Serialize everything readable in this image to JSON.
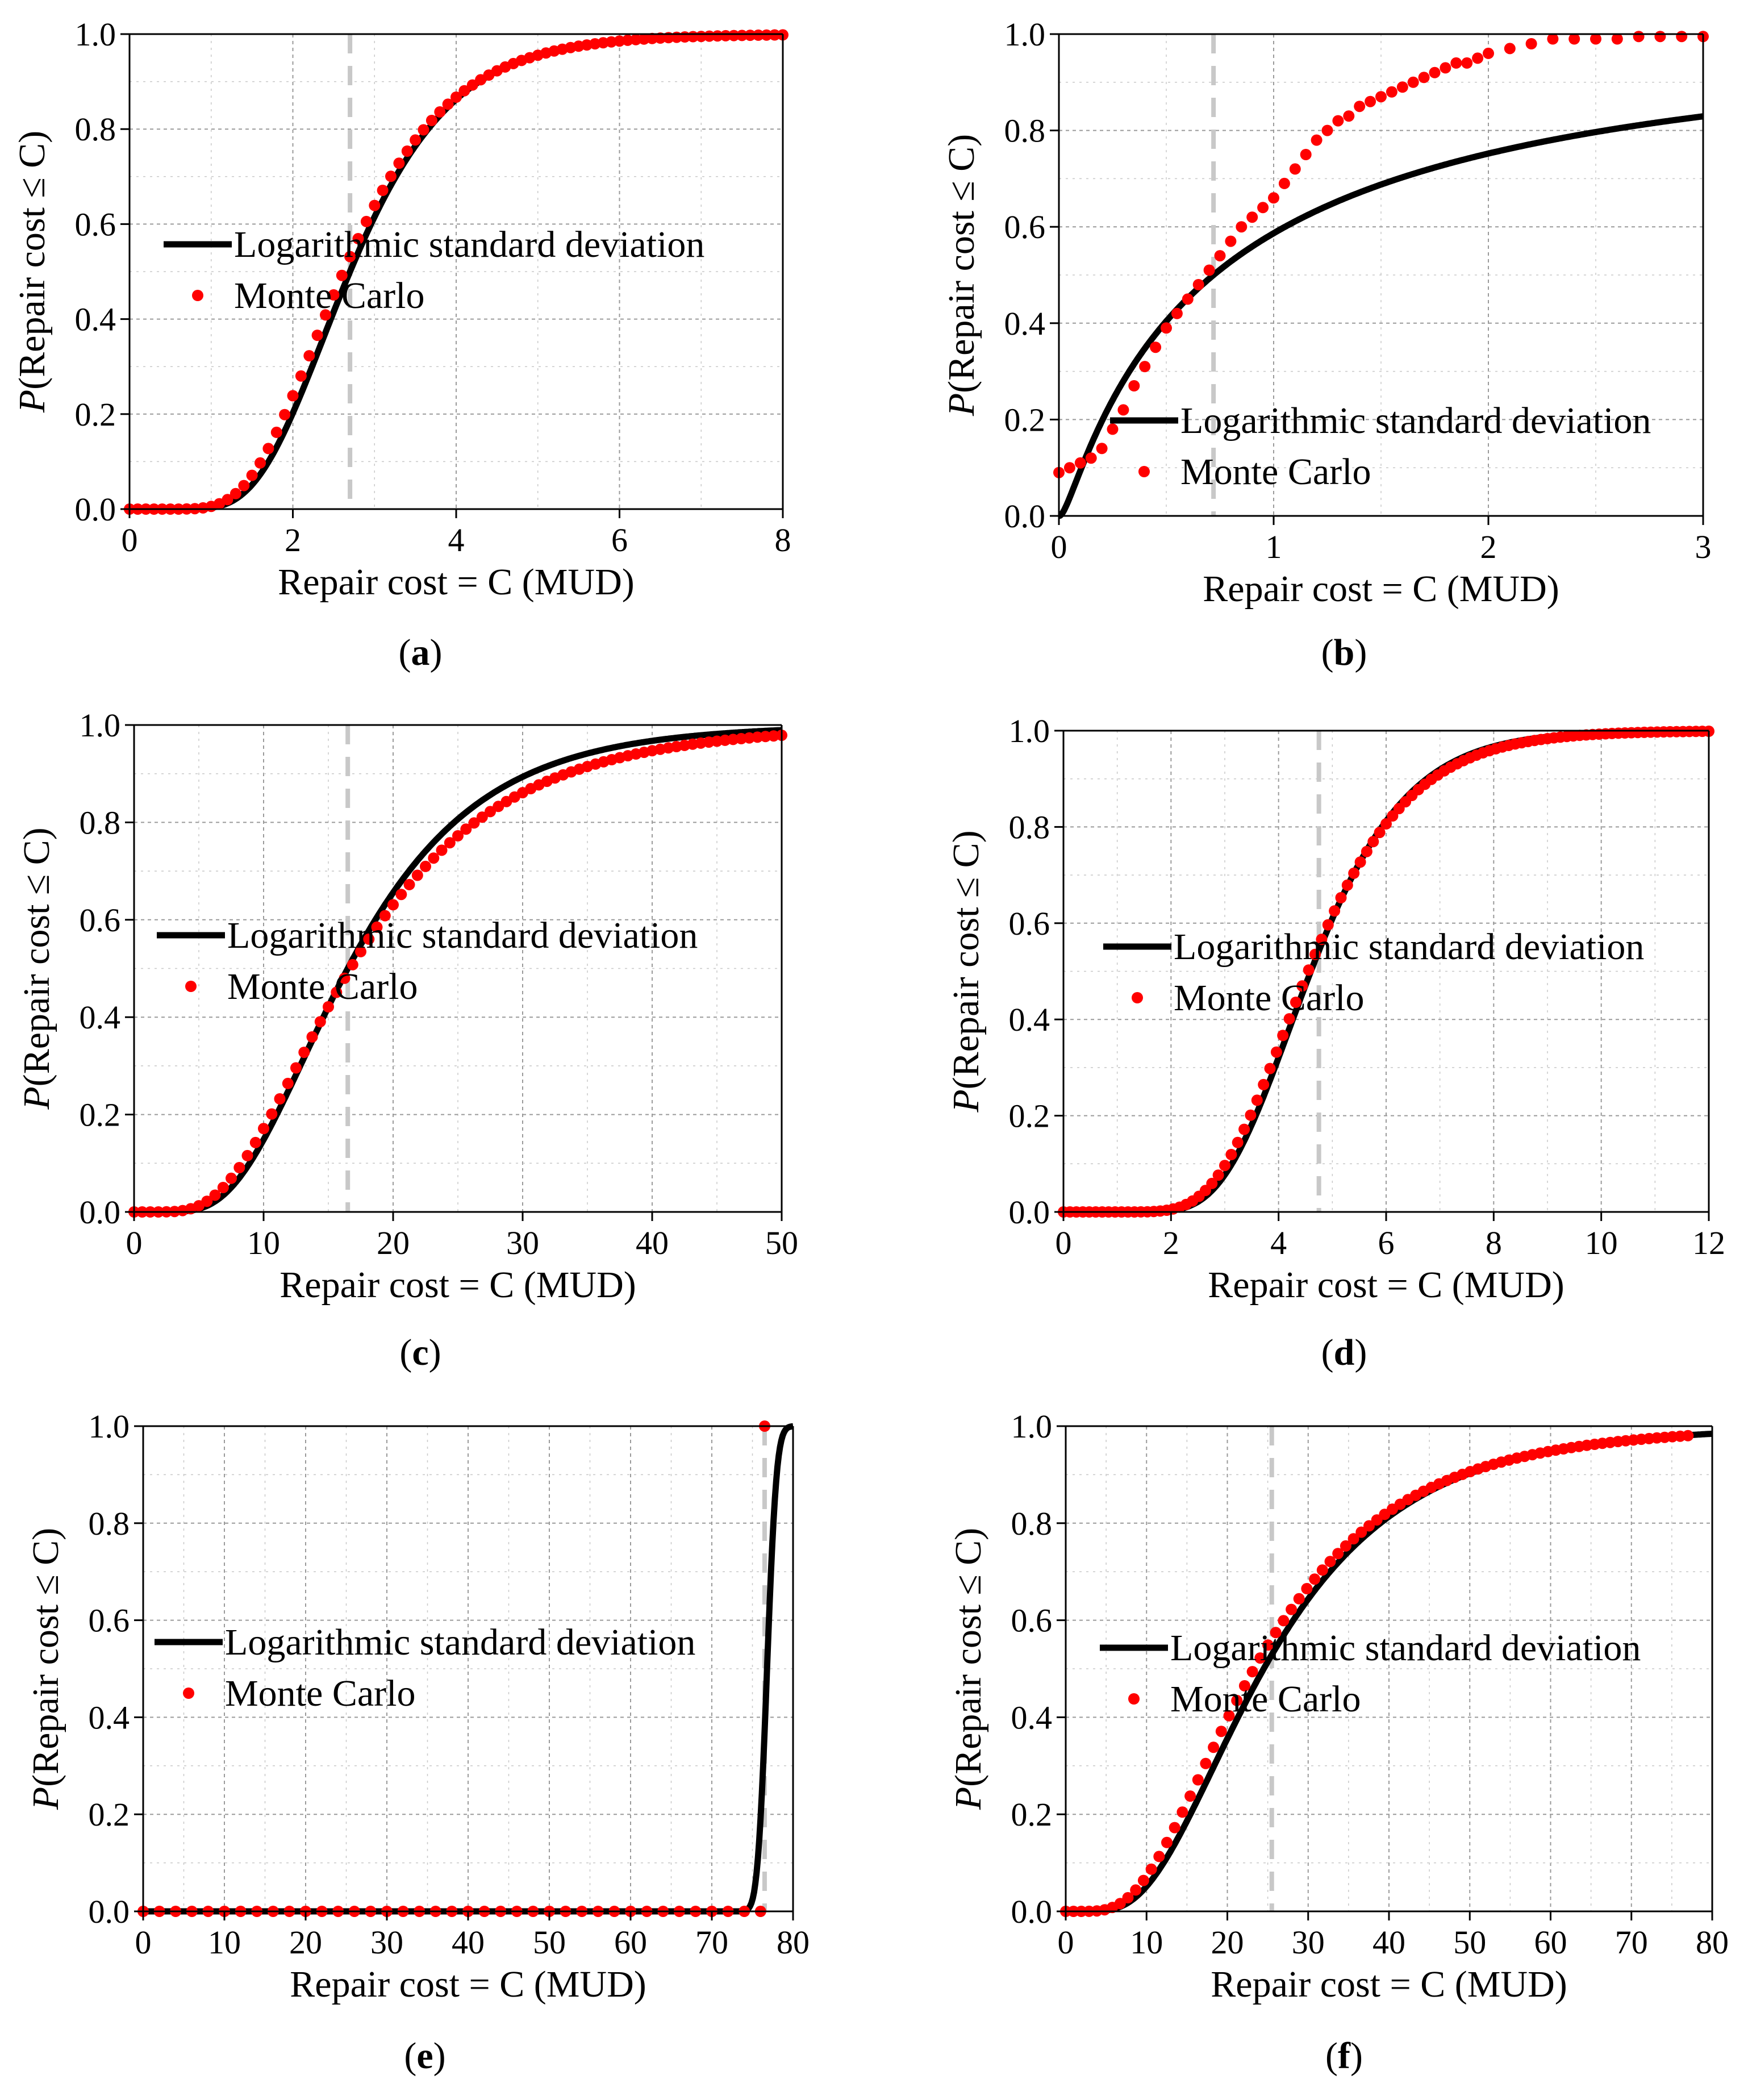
{
  "figure": {
    "axis_label_suffix_italic": "P"
  },
  "chart_data": [
    {
      "id": "a",
      "type": "line",
      "panel_label": "a",
      "xlabel": "Repair cost = C (MUD)",
      "ylabel": "P(Repair cost ≤ C)",
      "xlim": [
        0,
        8
      ],
      "ylim": [
        0,
        1.0
      ],
      "xticks": [
        0,
        2,
        4,
        6,
        8
      ],
      "yticks": [
        0.0,
        0.2,
        0.4,
        0.6,
        0.8,
        1.0
      ],
      "grid": true,
      "legend_position": "center-left",
      "median_line_x": 2.7,
      "series": [
        {
          "name": "Logarithmic standard deviation",
          "kind": "lognormal-cdf",
          "median": 2.7,
          "beta": 0.36,
          "color": "#000000"
        },
        {
          "name": "Monte Carlo",
          "kind": "lognormal-cdf-points",
          "median": 2.62,
          "beta": 0.38,
          "n": 80,
          "color": "#ff0000"
        }
      ]
    },
    {
      "id": "b",
      "type": "line",
      "panel_label": "b",
      "xlabel": "Repair cost = C (MUD)",
      "ylabel": "P(Repair cost ≤ C)",
      "xlim": [
        0,
        3
      ],
      "ylim": [
        0,
        1.0
      ],
      "xticks": [
        0,
        1,
        2,
        3
      ],
      "yticks": [
        0.0,
        0.2,
        0.4,
        0.6,
        0.8,
        1.0
      ],
      "grid": true,
      "legend_position": "lower-right",
      "median_line_x": 0.72,
      "series": [
        {
          "name": "Logarithmic standard deviation",
          "kind": "lognormal-cdf",
          "median": 0.72,
          "beta": 1.5,
          "color": "#000000"
        },
        {
          "name": "Monte Carlo",
          "kind": "points",
          "x": [
            0.0,
            0.05,
            0.1,
            0.15,
            0.2,
            0.25,
            0.3,
            0.35,
            0.4,
            0.45,
            0.5,
            0.55,
            0.6,
            0.65,
            0.7,
            0.75,
            0.8,
            0.85,
            0.9,
            0.95,
            1.0,
            1.05,
            1.1,
            1.15,
            1.2,
            1.25,
            1.3,
            1.35,
            1.4,
            1.45,
            1.5,
            1.55,
            1.6,
            1.65,
            1.7,
            1.75,
            1.8,
            1.85,
            1.9,
            1.95,
            2.0,
            2.1,
            2.2,
            2.3,
            2.4,
            2.5,
            2.6,
            2.7,
            2.8,
            2.9,
            3.0
          ],
          "y": [
            0.09,
            0.1,
            0.11,
            0.12,
            0.14,
            0.18,
            0.22,
            0.27,
            0.31,
            0.35,
            0.39,
            0.42,
            0.45,
            0.48,
            0.51,
            0.54,
            0.57,
            0.6,
            0.62,
            0.64,
            0.66,
            0.69,
            0.72,
            0.75,
            0.78,
            0.8,
            0.82,
            0.83,
            0.85,
            0.86,
            0.87,
            0.88,
            0.89,
            0.9,
            0.91,
            0.92,
            0.93,
            0.94,
            0.94,
            0.95,
            0.96,
            0.97,
            0.98,
            0.99,
            0.99,
            0.99,
            0.99,
            0.995,
            0.995,
            0.995,
            0.995
          ],
          "color": "#ff0000"
        }
      ]
    },
    {
      "id": "c",
      "type": "line",
      "panel_label": "c",
      "xlabel": "Repair cost = C (MUD)",
      "ylabel": "P(Repair cost ≤ C)",
      "xlim": [
        0,
        50
      ],
      "ylim": [
        0,
        1.0
      ],
      "xticks": [
        0,
        10,
        20,
        30,
        40,
        50
      ],
      "yticks": [
        0.0,
        0.2,
        0.4,
        0.6,
        0.8,
        1.0
      ],
      "grid": true,
      "legend_position": "center-left",
      "median_line_x": 16.5,
      "series": [
        {
          "name": "Logarithmic standard deviation",
          "kind": "lognormal-cdf",
          "median": 16.5,
          "beta": 0.48,
          "color": "#000000"
        },
        {
          "name": "Monte Carlo",
          "kind": "lognormal-cdf-points",
          "median": 16.7,
          "beta": 0.54,
          "n": 80,
          "color": "#ff0000"
        }
      ]
    },
    {
      "id": "d",
      "type": "line",
      "panel_label": "d",
      "xlabel": "Repair cost = C (MUD)",
      "ylabel": "P(Repair cost ≤ C)",
      "xlim": [
        0,
        12
      ],
      "ylim": [
        0,
        1.0
      ],
      "xticks": [
        0,
        2,
        4,
        6,
        8,
        10,
        12
      ],
      "yticks": [
        0.0,
        0.2,
        0.4,
        0.6,
        0.8,
        1.0
      ],
      "grid": true,
      "legend_position": "center-right",
      "median_line_x": 4.75,
      "series": [
        {
          "name": "Logarithmic standard deviation",
          "kind": "lognormal-cdf",
          "median": 4.6,
          "beta": 0.3,
          "color": "#000000"
        },
        {
          "name": "Monte Carlo",
          "kind": "lognormal-cdf-points",
          "median": 4.55,
          "beta": 0.32,
          "n": 100,
          "color": "#ff0000"
        }
      ]
    },
    {
      "id": "e",
      "type": "line",
      "panel_label": "e",
      "xlabel": "Repair cost = C (MUD)",
      "ylabel": "P(Repair cost ≤ C)",
      "xlim": [
        0,
        80
      ],
      "ylim": [
        0,
        1.0
      ],
      "xticks": [
        0,
        10,
        20,
        30,
        40,
        50,
        60,
        70,
        80
      ],
      "yticks": [
        0.0,
        0.2,
        0.4,
        0.6,
        0.8,
        1.0
      ],
      "grid": true,
      "legend_position": "center-left",
      "median_line_x": 76.5,
      "series": [
        {
          "name": "Logarithmic standard deviation",
          "kind": "lognormal-cdf",
          "median": 76.8,
          "beta": 0.012,
          "color": "#000000"
        },
        {
          "name": "Monte Carlo",
          "kind": "points",
          "x": [
            0,
            2,
            4,
            6,
            8,
            10,
            12,
            14,
            16,
            18,
            20,
            22,
            24,
            26,
            28,
            30,
            32,
            34,
            36,
            38,
            40,
            42,
            44,
            46,
            48,
            50,
            52,
            54,
            56,
            58,
            60,
            62,
            64,
            66,
            68,
            70,
            72,
            74,
            76,
            76.5
          ],
          "y": [
            0,
            0,
            0,
            0,
            0,
            0,
            0,
            0,
            0,
            0,
            0,
            0,
            0,
            0,
            0,
            0,
            0,
            0,
            0,
            0,
            0,
            0,
            0,
            0,
            0,
            0,
            0,
            0,
            0,
            0,
            0,
            0,
            0,
            0,
            0,
            0,
            0,
            0,
            0,
            1.0
          ],
          "color": "#ff0000"
        }
      ]
    },
    {
      "id": "f",
      "type": "line",
      "panel_label": "f",
      "xlabel": "Repair cost = C (MUD)",
      "ylabel": "P(Repair cost ≤ C)",
      "xlim": [
        0,
        80
      ],
      "ylim": [
        0,
        1.0
      ],
      "xticks": [
        0,
        10,
        20,
        30,
        40,
        50,
        60,
        70,
        80
      ],
      "yticks": [
        0.0,
        0.2,
        0.4,
        0.6,
        0.8,
        1.0
      ],
      "grid": true,
      "legend_position": "center-right",
      "median_line_x": 25.5,
      "series": [
        {
          "name": "Logarithmic standard deviation",
          "kind": "lognormal-cdf",
          "median": 24.5,
          "beta": 0.55,
          "color": "#000000"
        },
        {
          "name": "Monte Carlo",
          "kind": "lognormal-cdf-points",
          "median": 23.3,
          "beta": 0.58,
          "n": 80,
          "xmax": 77,
          "color": "#ff0000"
        }
      ]
    }
  ]
}
